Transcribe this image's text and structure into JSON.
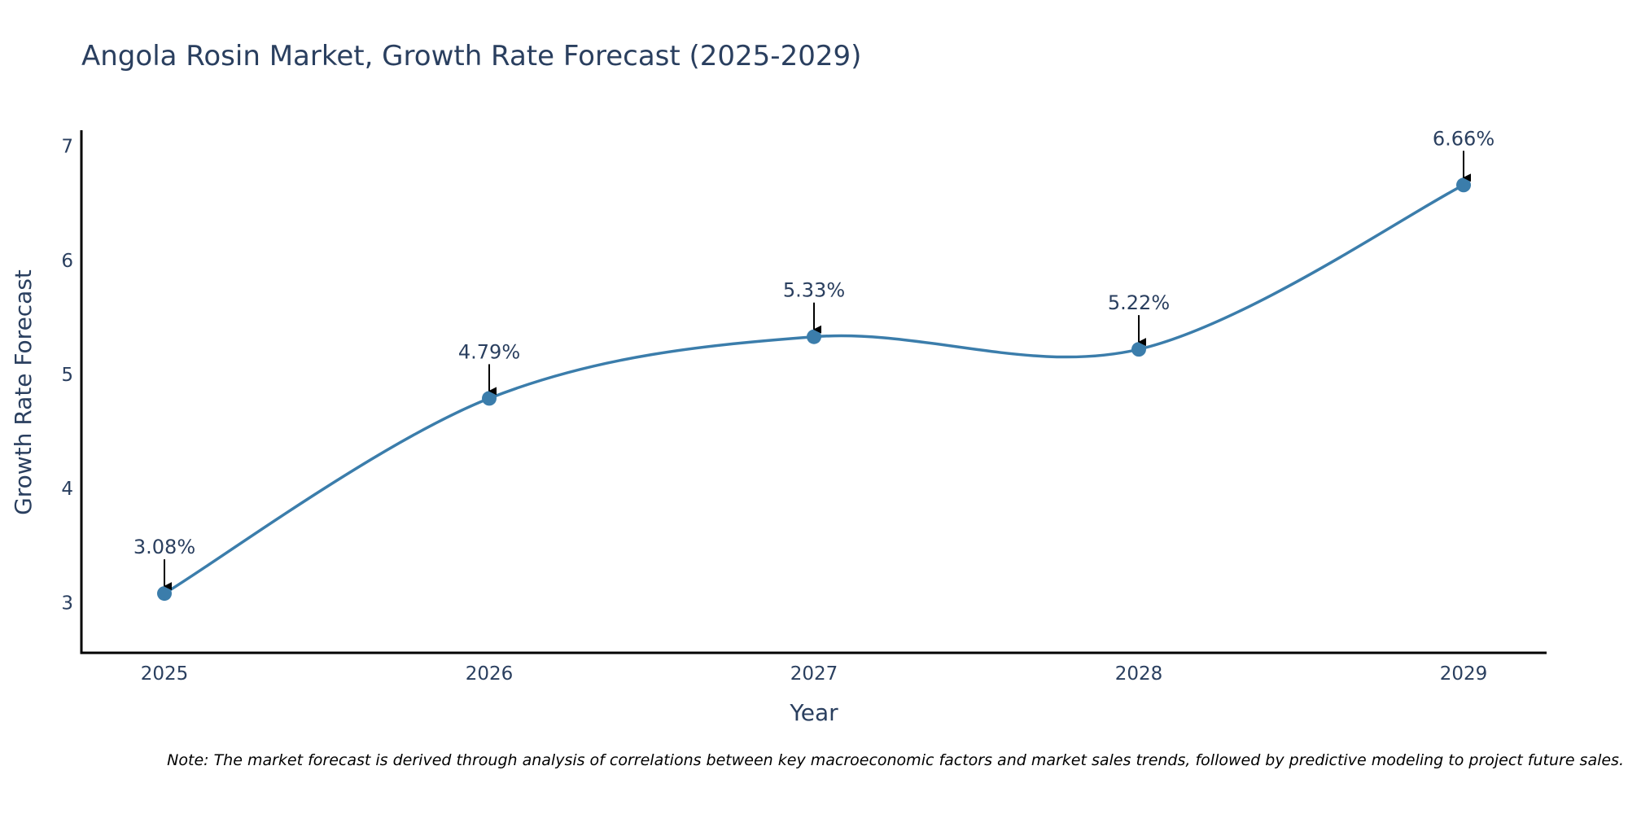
{
  "chart_data": {
    "type": "line",
    "title": "Angola Rosin Market, Growth Rate Forecast (2025-2029)",
    "xlabel": "Year",
    "ylabel": "Growth Rate Forecast",
    "categories": [
      "2025",
      "2026",
      "2027",
      "2028",
      "2029"
    ],
    "values": [
      3.08,
      4.79,
      5.33,
      5.22,
      6.66
    ],
    "data_labels": [
      "3.08%",
      "4.79%",
      "5.33%",
      "5.22%",
      "6.66%"
    ],
    "y_ticks": [
      3,
      4,
      5,
      6,
      7
    ],
    "ylim": [
      2.56,
      7.14
    ],
    "grid": false,
    "legend": "none",
    "series_color": "#3b7dab",
    "annotation_arrow_color": "#000000",
    "axis_color": "#000000"
  },
  "note": "Note: The market forecast is derived through analysis of correlations between key macroeconomic factors and market sales trends, followed by predictive modeling to project future sales."
}
